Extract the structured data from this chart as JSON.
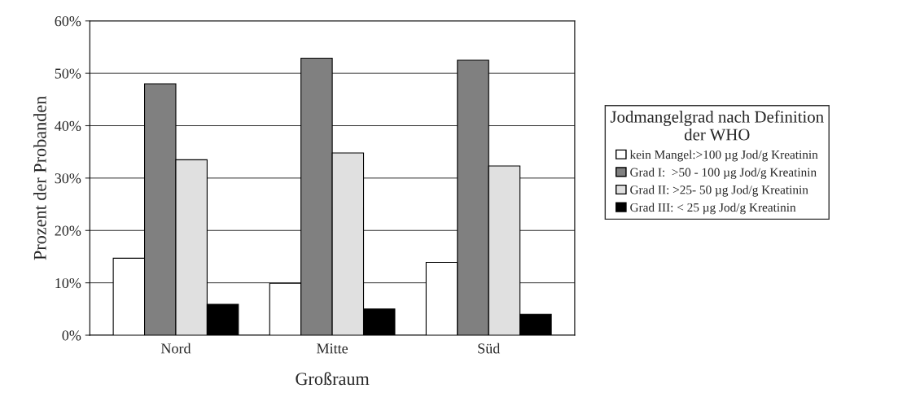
{
  "chart_data": {
    "type": "bar",
    "xlabel": "Großraum",
    "ylabel": "Prozent der Probanden",
    "legend_title": "Jodmangelgrad nach Definition\nder WHO",
    "categories": [
      "Nord",
      "Mitte",
      "Süd"
    ],
    "series": [
      {
        "name": "kein Mangel:>100 µg Jod/g Kreatinin",
        "color": "#ffffff",
        "values": [
          14.7,
          9.9,
          13.9
        ]
      },
      {
        "name": "Grad I:  >50 - 100 µg Jod/g Kreatinin",
        "color": "#808080",
        "values": [
          48,
          52.9,
          52.5
        ]
      },
      {
        "name": "Grad II: >25- 50 µg Jod/g Kreatinin",
        "color": "#e0e0e0",
        "values": [
          33.5,
          34.8,
          32.3
        ]
      },
      {
        "name": "Grad III: < 25 µg Jod/g Kreatinin",
        "color": "#000000",
        "values": [
          5.9,
          5,
          4
        ]
      }
    ],
    "ylim": [
      0,
      60
    ],
    "yticks": [
      {
        "value": 0,
        "label": "0%"
      },
      {
        "value": 10,
        "label": "10%"
      },
      {
        "value": 20,
        "label": "20%"
      },
      {
        "value": 30,
        "label": "30%"
      },
      {
        "value": 40,
        "label": "40%"
      },
      {
        "value": 50,
        "label": "50%"
      },
      {
        "value": 60,
        "label": "60%"
      }
    ],
    "grid": "y",
    "legend": "right"
  }
}
